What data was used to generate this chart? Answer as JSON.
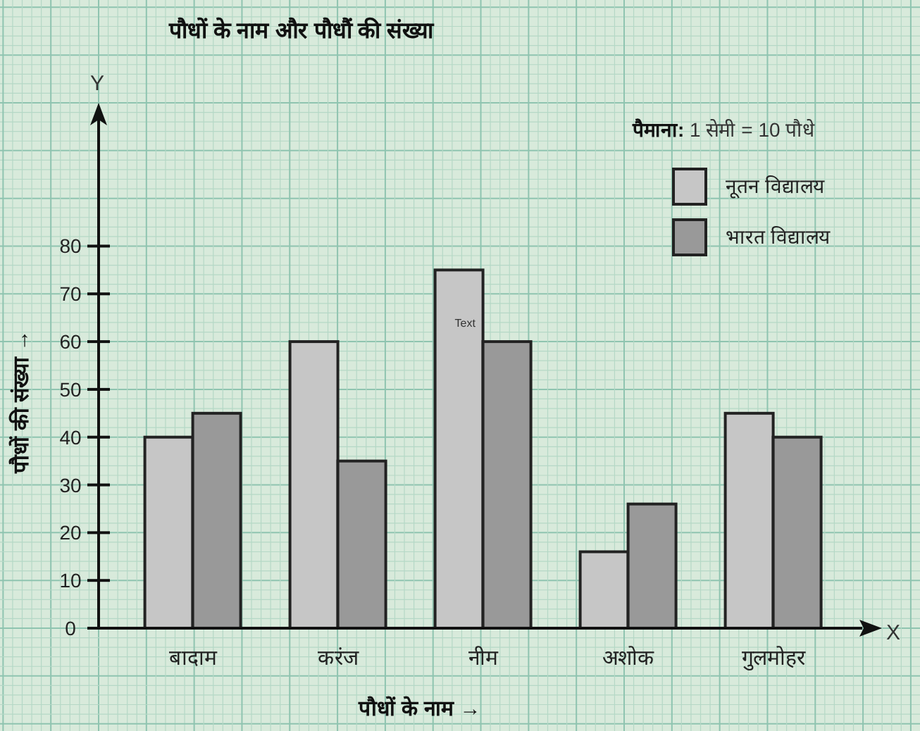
{
  "chart_data": {
    "type": "bar",
    "title": "पौधों के नाम और पौधौं की संख्या",
    "xlabel": "पौधों के नाम →",
    "ylabel": "पौधों की संख्या →",
    "categories": [
      "बादाम",
      "करंज",
      "नीम",
      "अशोक",
      "गुलमोहर"
    ],
    "series": [
      {
        "name": "नूतन विद्यालय",
        "color": "#c6c6c6",
        "values": [
          40,
          60,
          75,
          16,
          45
        ]
      },
      {
        "name": "भारत विद्यालय",
        "color": "#999999",
        "values": [
          45,
          35,
          60,
          26,
          40
        ]
      }
    ],
    "ylim": [
      0,
      110
    ],
    "yticks": [
      0,
      10,
      20,
      30,
      40,
      50,
      60,
      70,
      80
    ],
    "grid": true,
    "legend": "top right",
    "annotations": [
      "पैमाना: 1 सेमी = 10 पौधे",
      "Y",
      "X",
      {
        "text": "Text",
        "x": "नीम",
        "y": 64
      }
    ]
  }
}
